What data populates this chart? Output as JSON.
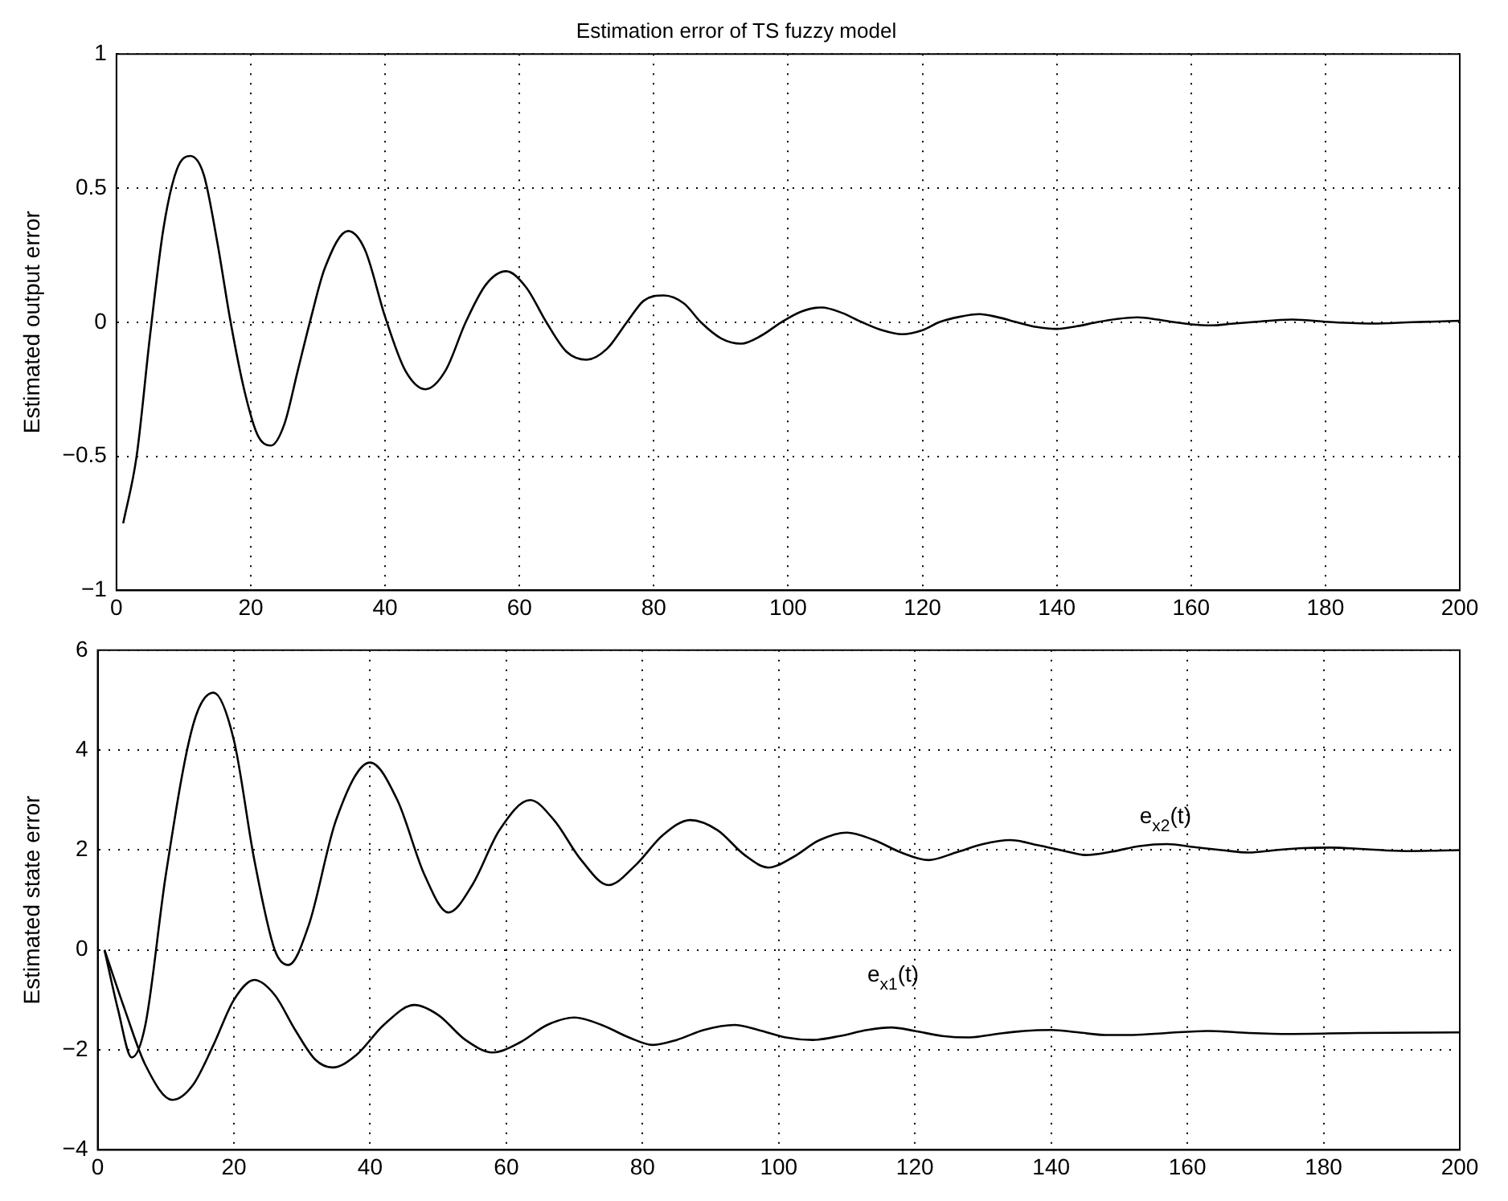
{
  "chart_data": [
    {
      "type": "line",
      "title": "Estimation error of TS fuzzy model",
      "ylabel": "Estimated output error",
      "xlim": [
        0,
        200
      ],
      "xticks": [
        0,
        20,
        40,
        60,
        80,
        100,
        120,
        140,
        160,
        180,
        200
      ],
      "ylim": [
        -1,
        1
      ],
      "yticks": [
        -1,
        -0.5,
        0,
        0.5,
        1
      ],
      "grid": true,
      "legend": false,
      "marker": "none",
      "line_style": "solid",
      "series": [
        {
          "color": "#000000",
          "x": [
            1,
            3,
            5,
            7,
            9,
            11,
            13,
            15,
            17,
            19,
            21,
            23,
            25,
            27,
            29,
            31,
            34.5,
            37,
            40,
            43,
            46,
            49,
            52,
            55,
            58,
            61,
            64,
            67,
            70,
            73,
            76,
            78.5,
            81.5,
            84.5,
            87,
            90,
            93,
            96,
            99,
            102,
            105,
            108,
            111,
            114,
            117,
            120,
            122.5,
            125.5,
            128.5,
            131,
            134,
            137,
            140,
            143,
            146,
            149,
            152,
            155,
            157.5,
            160,
            163,
            166,
            169,
            175,
            181,
            187,
            193,
            200
          ],
          "values": [
            -0.75,
            -0.5,
            -0.05,
            0.35,
            0.57,
            0.62,
            0.55,
            0.3,
            0.0,
            -0.25,
            -0.42,
            -0.46,
            -0.38,
            -0.18,
            0.02,
            0.2,
            0.34,
            0.27,
            0.02,
            -0.18,
            -0.25,
            -0.18,
            0.0,
            0.14,
            0.19,
            0.13,
            0.0,
            -0.11,
            -0.14,
            -0.1,
            0.0,
            0.08,
            0.1,
            0.07,
            0.0,
            -0.06,
            -0.08,
            -0.05,
            0.0,
            0.04,
            0.055,
            0.035,
            0.0,
            -0.03,
            -0.045,
            -0.03,
            0.0,
            0.02,
            0.03,
            0.02,
            0.0,
            -0.018,
            -0.025,
            -0.015,
            0.0,
            0.012,
            0.018,
            0.01,
            0.0,
            -0.008,
            -0.012,
            -0.006,
            0.0,
            0.01,
            0.0,
            -0.005,
            0.0,
            0.005
          ]
        }
      ]
    },
    {
      "type": "line",
      "ylabel": "Estimated state error",
      "xlim": [
        0,
        200
      ],
      "xticks": [
        0,
        20,
        40,
        60,
        80,
        100,
        120,
        140,
        160,
        180,
        200
      ],
      "ylim": [
        -4,
        6
      ],
      "yticks": [
        -4,
        -2,
        0,
        2,
        4,
        6
      ],
      "grid": true,
      "legend": false,
      "marker": "none",
      "line_style": "solid",
      "series": [
        {
          "name": "e$_{x1}$(t)",
          "color": "#000000",
          "x": [
            1,
            4,
            7,
            11,
            14,
            17,
            20,
            23,
            26,
            29,
            32,
            34.5,
            38,
            42,
            46.5,
            50,
            54,
            58,
            62,
            66,
            70,
            74,
            78,
            81.5,
            85,
            89,
            93.5,
            97,
            101,
            105,
            109,
            113,
            116.5,
            120,
            124,
            128,
            132,
            136,
            140,
            144,
            148,
            152,
            157,
            163,
            169,
            175,
            185,
            200
          ],
          "values": [
            0,
            -1.2,
            -2.3,
            -3.0,
            -2.7,
            -1.9,
            -1.0,
            -0.6,
            -0.9,
            -1.6,
            -2.2,
            -2.35,
            -2.1,
            -1.5,
            -1.1,
            -1.3,
            -1.8,
            -2.05,
            -1.85,
            -1.5,
            -1.35,
            -1.5,
            -1.75,
            -1.9,
            -1.8,
            -1.6,
            -1.5,
            -1.6,
            -1.75,
            -1.8,
            -1.72,
            -1.6,
            -1.55,
            -1.62,
            -1.72,
            -1.75,
            -1.68,
            -1.62,
            -1.6,
            -1.65,
            -1.7,
            -1.7,
            -1.66,
            -1.62,
            -1.66,
            -1.68,
            -1.66,
            -1.65
          ]
        },
        {
          "name": "e$_{x2}$(t)",
          "color": "#000000",
          "x": [
            1,
            3,
            5,
            7,
            10,
            14,
            17,
            20,
            23,
            26,
            28,
            31,
            35,
            40,
            44,
            48,
            51.5,
            55,
            59,
            63.5,
            67,
            71,
            75,
            79,
            83,
            87,
            91,
            95,
            98.5,
            102,
            106,
            110,
            114,
            118,
            122,
            126,
            130,
            134,
            138,
            142,
            145,
            149,
            153,
            157,
            161,
            165,
            169,
            173,
            177,
            181,
            186,
            192,
            200
          ],
          "values": [
            0,
            -1.2,
            -2.15,
            -1.5,
            1.5,
            4.5,
            5.15,
            4.2,
            1.8,
            0,
            -0.3,
            0.5,
            2.6,
            3.75,
            3.0,
            1.5,
            0.75,
            1.3,
            2.4,
            3.0,
            2.6,
            1.8,
            1.3,
            1.7,
            2.3,
            2.6,
            2.4,
            1.9,
            1.65,
            1.85,
            2.2,
            2.35,
            2.2,
            1.95,
            1.8,
            1.95,
            2.12,
            2.2,
            2.1,
            1.98,
            1.9,
            1.97,
            2.08,
            2.12,
            2.06,
            2.0,
            1.95,
            2.0,
            2.04,
            2.05,
            2.02,
            1.98,
            2.0
          ]
        }
      ]
    }
  ]
}
